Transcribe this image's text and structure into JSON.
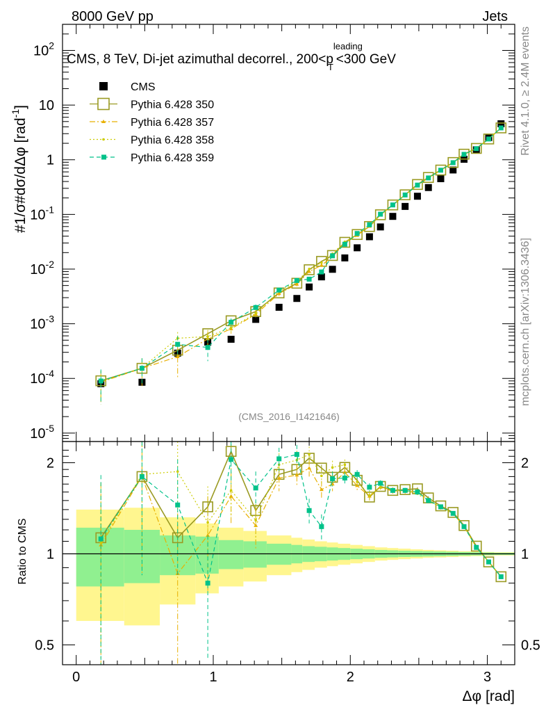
{
  "header": {
    "left": "8000 GeV pp",
    "right": "Jets"
  },
  "chart_data": {
    "type": "scatter",
    "title": "CMS, 8 TeV, Di-jet azimuthal decorrel., 200<p",
    "title_sup": "leading",
    "title_sub": "T",
    "title_tail": "<300 GeV",
    "ylabel_main": "#1/σ#dσ/dΔφ [rad",
    "ylabel_unit_sup": "-1",
    "ylabel_unit_close": "]",
    "ylabel_ratio": "Ratio to CMS",
    "xlabel": "Δφ [rad]",
    "analysis_id": "(CMS_2016_I1421646)",
    "side_label_top": "Rivet 4.1.0, ≥ 2.4M events",
    "side_label_bottom": "mcplots.cern.ch [arXiv:1306.3436]",
    "xlim": [
      -0.1,
      3.2
    ],
    "ylim_main": [
      7e-06,
      300
    ],
    "ylim_ratio": [
      0.43,
      2.35
    ],
    "main_yticks": [
      {
        "value": 1e-05,
        "base": "10",
        "exp": "-5"
      },
      {
        "value": 0.0001,
        "base": "10",
        "exp": "-4"
      },
      {
        "value": 0.001,
        "base": "10",
        "exp": "-3"
      },
      {
        "value": 0.01,
        "base": "10",
        "exp": "-2"
      },
      {
        "value": 0.1,
        "base": "10",
        "exp": "-1"
      },
      {
        "value": 1,
        "base": "1",
        "exp": ""
      },
      {
        "value": 10,
        "base": "10",
        "exp": ""
      },
      {
        "value": 100,
        "base": "10",
        "exp": "2"
      }
    ],
    "ratio_yticks": [
      {
        "value": 0.5,
        "label": "0.5"
      },
      {
        "value": 1,
        "label": "1"
      },
      {
        "value": 2,
        "label": "2"
      }
    ],
    "xticks": [
      {
        "value": 0,
        "label": "0"
      },
      {
        "value": 1,
        "label": "1"
      },
      {
        "value": 2,
        "label": "2"
      },
      {
        "value": 3,
        "label": "3"
      }
    ],
    "x": [
      0.18,
      0.48,
      0.74,
      0.96,
      1.13,
      1.31,
      1.48,
      1.61,
      1.7,
      1.79,
      1.87,
      1.96,
      2.05,
      2.14,
      2.22,
      2.31,
      2.4,
      2.49,
      2.57,
      2.66,
      2.75,
      2.83,
      2.92,
      3.01,
      3.1
    ],
    "data_series": {
      "name": "CMS",
      "values": [
        8e-05,
        8.5e-05,
        0.00029,
        0.00046,
        0.00052,
        0.0012,
        0.002,
        0.0029,
        0.0047,
        0.0072,
        0.0099,
        0.016,
        0.0245,
        0.039,
        0.059,
        0.092,
        0.14,
        0.215,
        0.31,
        0.45,
        0.65,
        1.02,
        1.52,
        2.55,
        4.55
      ],
      "color": "#000000"
    },
    "band_x_edges": [
      0,
      0.35,
      0.61,
      0.87,
      1.04,
      1.22,
      1.39,
      1.57,
      1.65,
      1.74,
      1.83,
      1.91,
      2.0,
      2.09,
      2.18,
      2.27,
      2.35,
      2.44,
      2.53,
      2.61,
      2.7,
      2.79,
      2.88,
      2.96,
      3.05,
      3.2
    ],
    "band_stat_half": [
      0.22,
      0.2,
      0.15,
      0.14,
      0.11,
      0.1,
      0.08,
      0.07,
      0.06,
      0.055,
      0.05,
      0.045,
      0.04,
      0.035,
      0.03,
      0.027,
      0.024,
      0.022,
      0.02,
      0.018,
      0.016,
      0.014,
      0.012,
      0.01,
      0.008
    ],
    "band_total_half": [
      0.4,
      0.42,
      0.32,
      0.26,
      0.22,
      0.19,
      0.15,
      0.13,
      0.115,
      0.1,
      0.09,
      0.08,
      0.07,
      0.06,
      0.05,
      0.045,
      0.04,
      0.035,
      0.03,
      0.027,
      0.024,
      0.02,
      0.017,
      0.014,
      0.012
    ],
    "band_colors": {
      "stat": "#90f090",
      "total": "#fff68f"
    },
    "series": [
      {
        "name": "Pythia 6.428 350",
        "color": "#9a9a22",
        "style": "solid",
        "marker": "open-square",
        "ratio": [
          1.13,
          1.8,
          1.13,
          1.43,
          2.18,
          1.39,
          1.83,
          1.9,
          2.07,
          1.92,
          1.79,
          1.93,
          1.75,
          1.54,
          1.67,
          1.62,
          1.63,
          1.64,
          1.53,
          1.44,
          1.37,
          1.24,
          1.06,
          0.94,
          0.84
        ],
        "ratio_err": [
          0.1,
          0.12,
          0.1,
          0.09,
          0.12,
          0.07,
          0.07,
          0.06,
          0.05,
          0.05,
          0.04,
          0.04,
          0.03,
          0.03,
          0.03,
          0.02,
          0.02,
          0.02,
          0.02,
          0.01,
          0.01,
          0.01,
          0.01,
          0.01,
          0.01
        ]
      },
      {
        "name": "Pythia 6.428 357",
        "color": "#e8b000",
        "style": "dashdot",
        "marker": "small-triangle",
        "ratio": [
          1.07,
          1.8,
          0.86,
          1.15,
          1.55,
          1.24,
          1.78,
          1.82,
          1.92,
          1.63,
          1.7,
          1.86,
          1.68,
          1.55,
          1.66,
          1.61,
          1.62,
          1.6,
          1.51,
          1.42,
          1.36,
          1.23,
          1.05,
          0.94,
          0.84
        ],
        "ratio_err": [
          0.65,
          0.95,
          0.5,
          0.4,
          0.3,
          0.2,
          0.17,
          0.15,
          0.12,
          0.11,
          0.09,
          0.08,
          0.06,
          0.05,
          0.04,
          0.03,
          0.03,
          0.02,
          0.02,
          0.02,
          0.01,
          0.01,
          0.01,
          0.01,
          0.01
        ]
      },
      {
        "name": "Pythia 6.428 358",
        "color": "#cccc00",
        "style": "dotted",
        "marker": "small-dot",
        "ratio": [
          1.09,
          1.83,
          1.87,
          1.27,
          1.62,
          1.29,
          1.97,
          2.04,
          2.13,
          1.81,
          1.93,
          1.97,
          1.73,
          1.56,
          1.66,
          1.63,
          1.61,
          1.58,
          1.49,
          1.43,
          1.36,
          1.23,
          1.05,
          0.94,
          0.84
        ],
        "ratio_err": [
          0.6,
          0.9,
          0.55,
          0.4,
          0.3,
          0.2,
          0.18,
          0.15,
          0.13,
          0.11,
          0.1,
          0.08,
          0.06,
          0.05,
          0.04,
          0.03,
          0.03,
          0.02,
          0.02,
          0.02,
          0.01,
          0.01,
          0.01,
          0.01,
          0.01
        ]
      },
      {
        "name": "Pythia 6.428 359",
        "color": "#00c28a",
        "style": "dashed",
        "marker": "filled-square",
        "ratio": [
          1.12,
          1.8,
          1.45,
          0.8,
          2.05,
          1.65,
          2.06,
          2.13,
          1.39,
          1.23,
          1.77,
          1.78,
          1.83,
          1.66,
          1.71,
          1.62,
          1.62,
          1.6,
          1.5,
          1.43,
          1.36,
          1.23,
          1.05,
          0.94,
          0.84
        ],
        "ratio_err": [
          0.7,
          0.95,
          0.6,
          0.35,
          0.35,
          0.22,
          0.18,
          0.16,
          0.13,
          0.12,
          0.1,
          0.08,
          0.06,
          0.05,
          0.04,
          0.03,
          0.03,
          0.02,
          0.02,
          0.02,
          0.01,
          0.01,
          0.01,
          0.01,
          0.01
        ]
      }
    ]
  }
}
